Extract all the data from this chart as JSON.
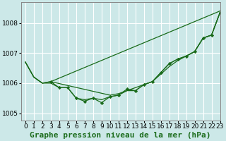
{
  "xlabel": "Graphe pression niveau de la mer (hPa)",
  "bg_color": "#cce8e8",
  "grid_color": "#b0d4d4",
  "line_color": "#1a6b1a",
  "xlim": [
    -0.5,
    23
  ],
  "ylim": [
    1004.75,
    1008.7
  ],
  "yticks": [
    1005,
    1006,
    1007,
    1008
  ],
  "xticks": [
    0,
    1,
    2,
    3,
    4,
    5,
    6,
    7,
    8,
    9,
    10,
    11,
    12,
    13,
    14,
    15,
    16,
    17,
    18,
    19,
    20,
    21,
    22,
    23
  ],
  "series": [
    {
      "x": [
        0,
        1,
        2,
        3,
        23
      ],
      "y": [
        1006.7,
        1006.2,
        1006.0,
        1006.05,
        1008.4
      ],
      "marker": false
    },
    {
      "x": [
        0,
        1,
        2,
        3,
        10,
        11,
        12,
        13,
        14,
        15,
        16,
        17,
        18,
        19,
        20,
        21,
        22,
        23
      ],
      "y": [
        1006.7,
        1006.2,
        1006.0,
        1006.05,
        1005.6,
        1005.65,
        1005.75,
        1005.85,
        1005.95,
        1006.05,
        1006.3,
        1006.55,
        1006.75,
        1006.9,
        1007.05,
        1007.5,
        1007.6,
        1008.35
      ],
      "marker": false
    },
    {
      "x": [
        0,
        1,
        2,
        3,
        4,
        5,
        6,
        7,
        8,
        9,
        10,
        11,
        12,
        13,
        14,
        15,
        16,
        17,
        18,
        19,
        20,
        21,
        22,
        23
      ],
      "y": [
        1006.7,
        1006.2,
        1006.0,
        1006.0,
        1005.85,
        1005.85,
        1005.5,
        1005.45,
        1005.5,
        1005.45,
        1005.55,
        1005.6,
        1005.75,
        1005.75,
        1005.95,
        1006.05,
        1006.35,
        1006.65,
        1006.8,
        1006.9,
        1007.05,
        1007.5,
        1007.6,
        1008.35
      ],
      "marker": false
    },
    {
      "x": [
        3,
        4,
        5,
        6,
        7,
        8,
        9,
        10,
        11,
        12,
        13,
        14,
        15,
        16,
        17,
        18,
        19,
        20,
        21,
        22,
        23
      ],
      "y": [
        1006.05,
        1005.85,
        1005.85,
        1005.5,
        1005.4,
        1005.5,
        1005.35,
        1005.55,
        1005.6,
        1005.8,
        1005.75,
        1005.95,
        1006.05,
        1006.35,
        1006.65,
        1006.8,
        1006.9,
        1007.05,
        1007.5,
        1007.6,
        1008.35
      ],
      "marker": true
    }
  ],
  "xlabel_fontsize": 8,
  "tick_fontsize": 6.5
}
